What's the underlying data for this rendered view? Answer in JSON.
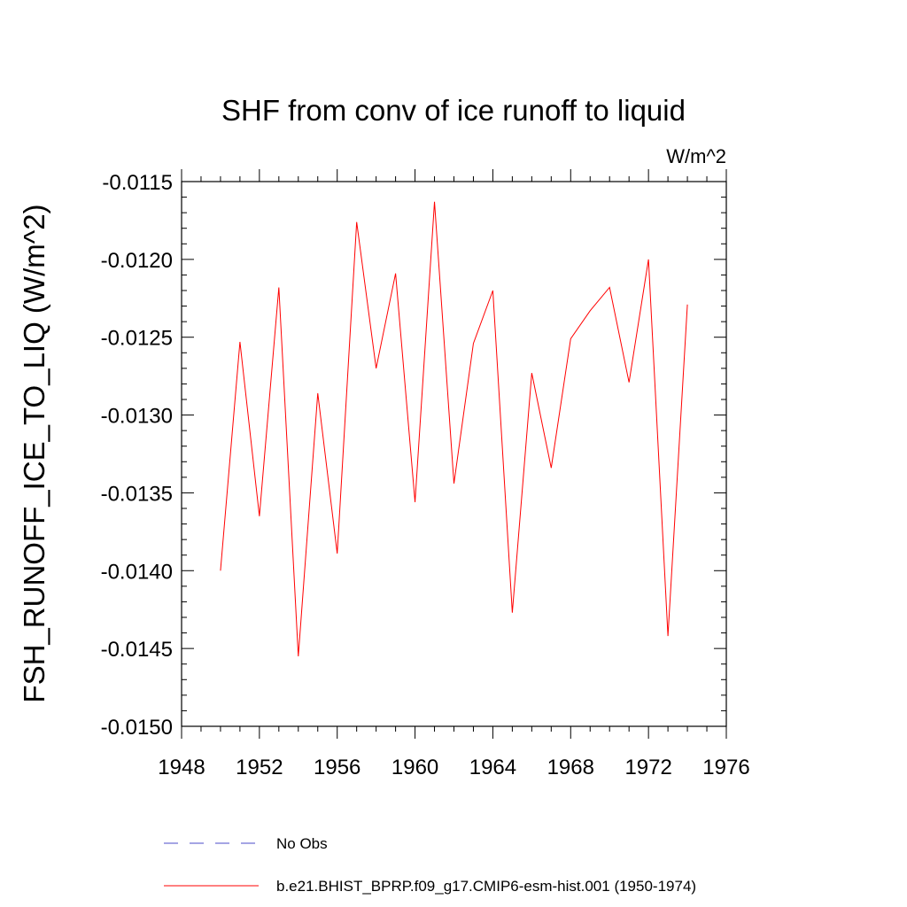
{
  "chart_data": {
    "type": "line",
    "title": "SHF from conv of ice runoff to liquid",
    "units": "W/m^2",
    "xlabel": "",
    "ylabel": "FSH_RUNOFF_ICE_TO_LIQ  (W/m^2)",
    "xlim": [
      1948,
      1976
    ],
    "ylim": [
      -0.015,
      -0.0115
    ],
    "x_major_ticks": [
      1948,
      1952,
      1956,
      1960,
      1964,
      1968,
      1972,
      1976
    ],
    "x_tick_labels": [
      "1948",
      "1952",
      "1956",
      "1960",
      "1964",
      "1968",
      "1972",
      "1976"
    ],
    "y_major_ticks": [
      -0.0115,
      -0.012,
      -0.0125,
      -0.013,
      -0.0135,
      -0.014,
      -0.0145,
      -0.015
    ],
    "y_tick_labels": [
      "-0.0115",
      "-0.0120",
      "-0.0125",
      "-0.0130",
      "-0.0135",
      "-0.0140",
      "-0.0145",
      "-0.0150"
    ],
    "grid": false,
    "legend_position": "bottom",
    "series": [
      {
        "name": "No Obs",
        "color": "#4b4bc8",
        "dash": "dashed",
        "x": [],
        "y": []
      },
      {
        "name": "b.e21.BHIST_BPRP.f09_g17.CMIP6-esm-hist.001 (1950-1974)",
        "color": "#ff0000",
        "dash": "solid",
        "x": [
          1950,
          1951,
          1952,
          1953,
          1954,
          1955,
          1956,
          1957,
          1958,
          1959,
          1960,
          1961,
          1962,
          1963,
          1964,
          1965,
          1966,
          1967,
          1968,
          1969,
          1970,
          1971,
          1972,
          1973,
          1974
        ],
        "y": [
          -0.014,
          -0.01253,
          -0.01365,
          -0.01218,
          -0.01455,
          -0.01286,
          -0.01389,
          -0.01176,
          -0.0127,
          -0.01209,
          -0.01356,
          -0.01163,
          -0.01344,
          -0.01254,
          -0.0122,
          -0.01427,
          -0.01273,
          -0.01334,
          -0.01251,
          -0.01233,
          -0.01218,
          -0.01279,
          -0.012,
          -0.01442,
          -0.01229
        ]
      }
    ]
  }
}
